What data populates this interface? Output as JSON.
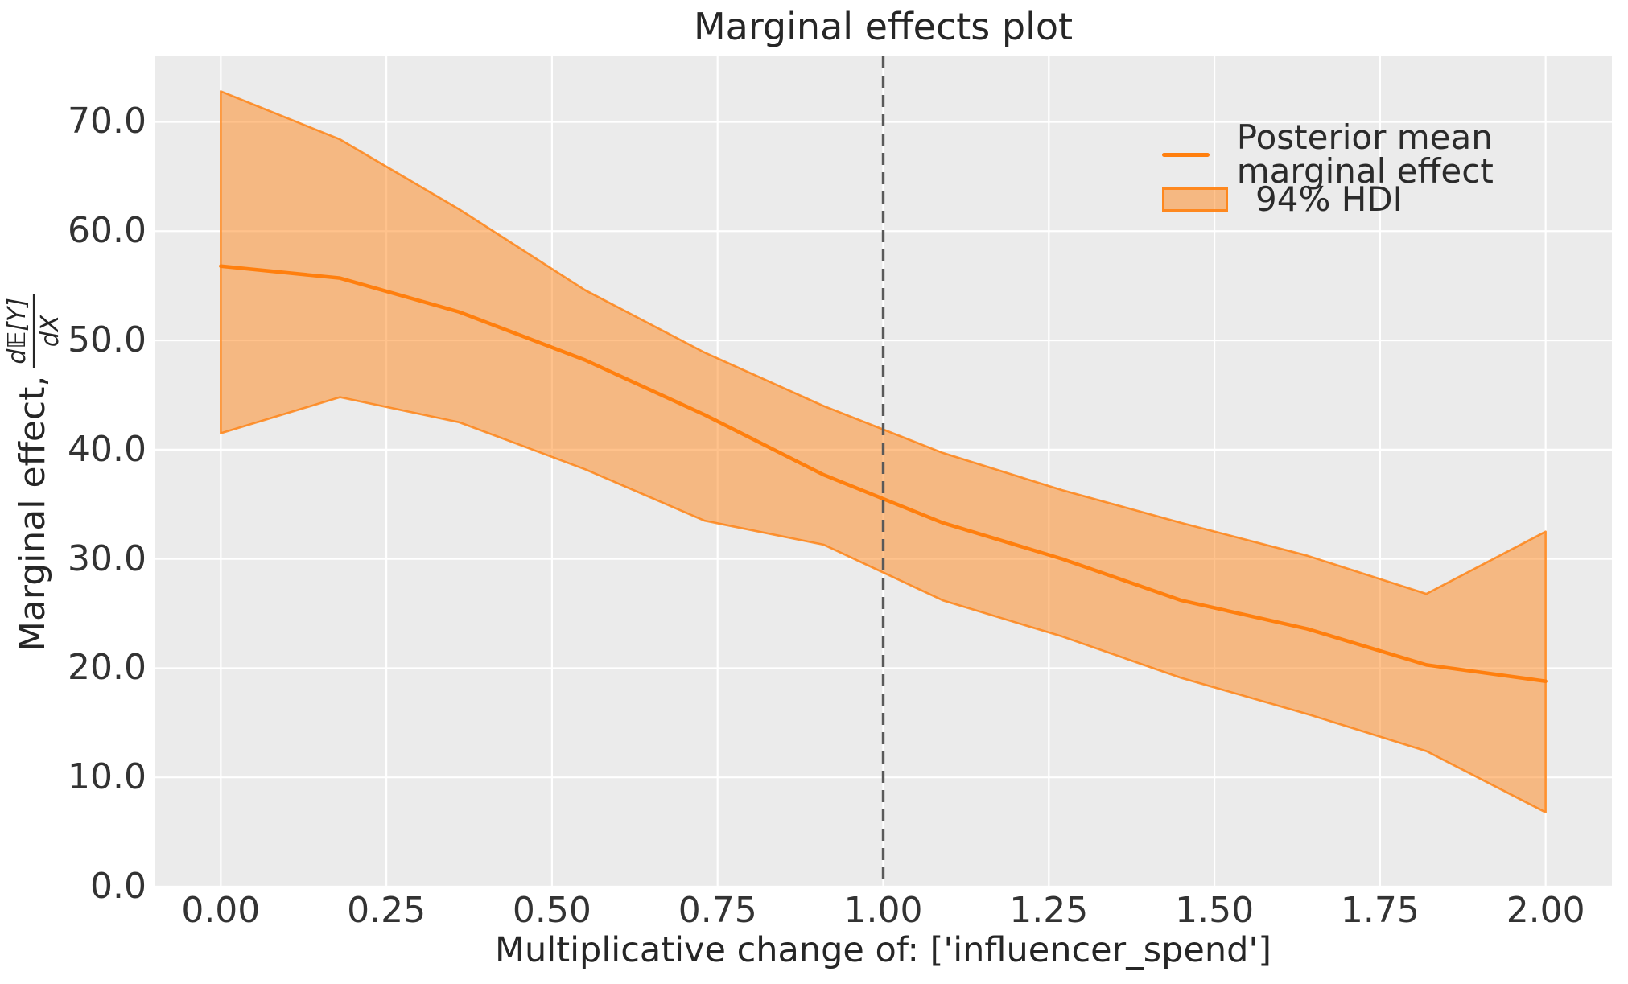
{
  "figure": {
    "title": "Marginal effects plot",
    "xlabel": "Multiplicative change of: ['influencer_spend']",
    "ylabel_prefix": "Marginal effect,",
    "ylabel_frac_num": "d𝔼[Y]",
    "ylabel_frac_den": "dX"
  },
  "legend": {
    "entries": [
      {
        "type": "line",
        "label": "Posterior mean marginal effect"
      },
      {
        "type": "patch",
        "label": "94% HDI"
      }
    ]
  },
  "chart_data": {
    "type": "line",
    "title": "Marginal effects plot",
    "xlabel": "Multiplicative change of: ['influencer_spend']",
    "ylabel": "Marginal effect, d𝔼[Y]/dX",
    "x": [
      0.0,
      0.18,
      0.36,
      0.55,
      0.73,
      0.91,
      1.09,
      1.27,
      1.45,
      1.64,
      1.82,
      2.0
    ],
    "series": [
      {
        "name": "Posterior mean marginal effect",
        "values": [
          56.8,
          55.7,
          52.6,
          48.2,
          43.2,
          37.7,
          33.3,
          30.0,
          26.2,
          23.6,
          20.3,
          18.8
        ]
      }
    ],
    "band": {
      "label": "94% HDI",
      "upper": [
        72.8,
        68.4,
        62.0,
        54.6,
        48.9,
        44.0,
        39.7,
        36.3,
        33.3,
        30.3,
        26.8,
        32.5
      ],
      "lower": [
        41.5,
        44.8,
        42.5,
        38.2,
        33.5,
        31.3,
        26.2,
        22.9,
        19.1,
        15.8,
        12.4,
        6.8
      ]
    },
    "vline_x": 1.0,
    "xlim": [
      -0.1,
      2.1
    ],
    "ylim": [
      0,
      76
    ],
    "xticks": [
      "0.00",
      "0.25",
      "0.50",
      "0.75",
      "1.00",
      "1.25",
      "1.50",
      "1.75",
      "2.00"
    ],
    "yticks": [
      "0.0",
      "10.0",
      "20.0",
      "30.0",
      "40.0",
      "50.0",
      "60.0",
      "70.0"
    ],
    "grid": true,
    "legend_position": "upper right",
    "colors": {
      "line": "#ff7f0e",
      "band_fill": "rgba(255,127,14,0.48)",
      "band_edge": "rgba(255,127,14,0.8)",
      "vline": "#595959",
      "axes_bg": "#ebebeb",
      "grid": "#ffffff",
      "text": "#262626"
    }
  }
}
